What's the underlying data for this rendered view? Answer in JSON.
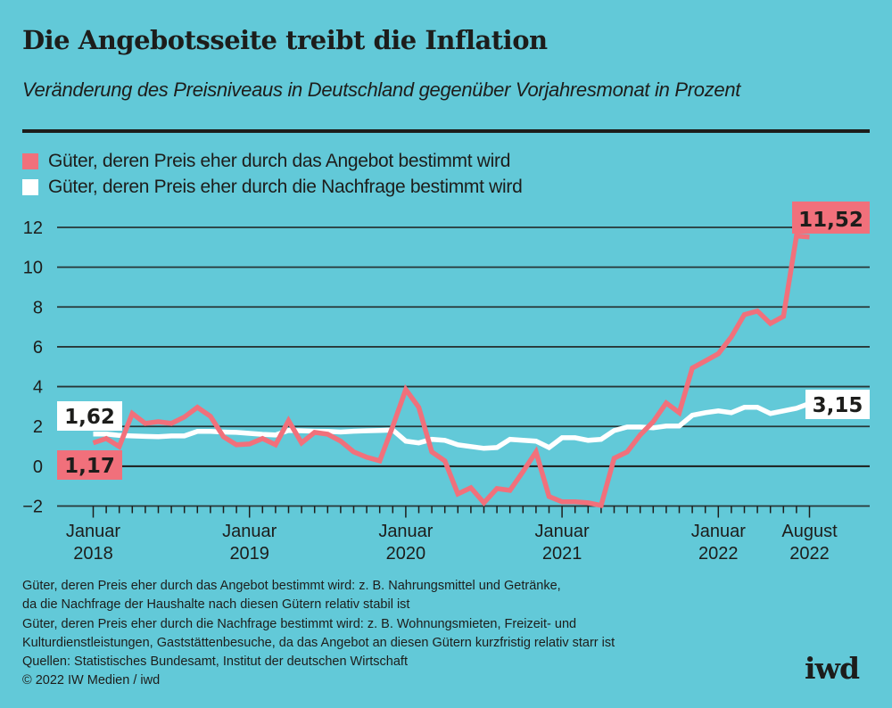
{
  "title": "Die Angebotsseite treibt die Inflation",
  "subtitle": "Veränderung des Preisniveaus in Deutschland gegenüber Vorjahresmonat in Prozent",
  "legend": [
    {
      "label": "Güter, deren Preis eher durch das Angebot bestimmt wird",
      "color": "#f1707b"
    },
    {
      "label": "Güter, deren Preis eher durch die Nachfrage bestimmt wird",
      "color": "#ffffff"
    }
  ],
  "footnotes": [
    "Güter, deren Preis eher durch das Angebot bestimmt wird: z. B. Nahrungsmittel und Getränke,",
    "da die Nachfrage der Haushalte nach diesen Gütern relativ stabil ist",
    "Güter, deren Preis eher durch die Nachfrage bestimmt wird: z. B. Wohnungsmieten, Freizeit- und",
    "Kulturdienstleistungen, Gaststättenbesuche, da das Angebot an diesen Gütern kurzfristig relativ starr ist",
    "Quellen: Statistisches Bundesamt, Institut der deutschen Wirtschaft",
    "© 2022 IW Medien / iwd"
  ],
  "logo": "iwd",
  "colors": {
    "background": "#62c9d8",
    "supply": "#f1707b",
    "demand": "#ffffff",
    "text": "#1d1d1b"
  },
  "chart_data": {
    "type": "line",
    "title": "Die Angebotsseite treibt die Inflation",
    "subtitle": "Veränderung des Preisniveaus in Deutschland gegenüber Vorjahresmonat in Prozent",
    "xlabel": "",
    "ylabel": "Prozent",
    "ylim": [
      -2,
      12
    ],
    "yticks": [
      12,
      10,
      8,
      6,
      4,
      2,
      0,
      -2
    ],
    "ytick_labels": [
      "12",
      "10",
      "8",
      "6",
      "4",
      "2",
      "0",
      "−2"
    ],
    "x_start": "2018-01",
    "x_end": "2022-08",
    "x_count": 56,
    "x_ticks_every": "month",
    "x_labels": [
      {
        "index": 0,
        "line1": "Januar",
        "line2": "2018"
      },
      {
        "index": 12,
        "line1": "Januar",
        "line2": "2019"
      },
      {
        "index": 24,
        "line1": "Januar",
        "line2": "2020"
      },
      {
        "index": 36,
        "line1": "Januar",
        "line2": "2021"
      },
      {
        "index": 48,
        "line1": "Januar",
        "line2": "2022"
      },
      {
        "index": 55,
        "line1": "August",
        "line2": "2022"
      }
    ],
    "grid": true,
    "legend_position": "top-left",
    "series": [
      {
        "name": "Güter, deren Preis eher durch das Angebot bestimmt wird",
        "color": "#f1707b",
        "start_label": "1,17",
        "end_label": "11,52",
        "values": [
          1.17,
          1.39,
          0.99,
          2.65,
          2.15,
          2.24,
          2.15,
          2.47,
          2.96,
          2.51,
          1.48,
          1.08,
          1.12,
          1.39,
          1.08,
          2.29,
          1.17,
          1.7,
          1.61,
          1.26,
          0.72,
          0.45,
          0.27,
          2.0,
          3.86,
          2.96,
          0.72,
          0.27,
          -1.39,
          -1.08,
          -1.84,
          -1.12,
          -1.21,
          -0.27,
          0.72,
          -1.52,
          -1.79,
          -1.79,
          -1.84,
          -1.97,
          0.4,
          0.72,
          1.57,
          2.24,
          3.18,
          2.69,
          4.93,
          5.29,
          5.65,
          6.5,
          7.62,
          7.8,
          7.17,
          7.53,
          11.57,
          11.52
        ]
      },
      {
        "name": "Güter, deren Preis eher durch die Nachfrage bestimmt wird",
        "color": "#ffffff",
        "start_label": "1,62",
        "end_label": "3,15",
        "values": [
          1.62,
          1.62,
          1.55,
          1.52,
          1.5,
          1.48,
          1.52,
          1.52,
          1.75,
          1.75,
          1.72,
          1.7,
          1.65,
          1.6,
          1.57,
          1.8,
          1.78,
          1.76,
          1.75,
          1.72,
          1.76,
          1.78,
          1.8,
          1.82,
          1.26,
          1.17,
          1.35,
          1.3,
          1.08,
          0.99,
          0.9,
          0.94,
          1.35,
          1.3,
          1.26,
          0.94,
          1.43,
          1.43,
          1.3,
          1.35,
          1.79,
          1.97,
          1.97,
          1.93,
          2.02,
          2.02,
          2.56,
          2.69,
          2.78,
          2.69,
          2.96,
          2.96,
          2.65,
          2.78,
          2.91,
          3.15
        ]
      }
    ]
  }
}
